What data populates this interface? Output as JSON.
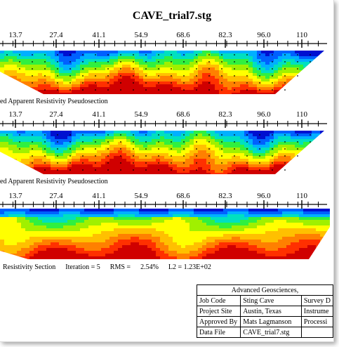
{
  "window": {
    "title": "CAVE_trial7.stg"
  },
  "tick_labels": [
    "13.7",
    "27.4",
    "41.1",
    "54.9",
    "68.6",
    "82.3",
    "96.0",
    "110"
  ],
  "sections": [
    {
      "caption": "ed Apparent Resistivity Pseudosection"
    },
    {
      "caption": "ed Apparent Resistivity Pseudosection"
    },
    {
      "caption": "Resistivity Section",
      "iteration_label": "Iteration = 5",
      "rms_label": "RMS =",
      "rms_value": "2.54%",
      "l2_label": "L2 = 1.23E+02"
    }
  ],
  "info_box": {
    "company": "Advanced Geosciences,",
    "rows": [
      {
        "label": "Job Code",
        "value": "Sting Cave",
        "extra": "Survey D"
      },
      {
        "label": "Project Site",
        "value": "Austin, Texas",
        "extra": "Instrume"
      },
      {
        "label": "Approved By",
        "value": "Mats Lagmanson",
        "extra": "Processi"
      },
      {
        "label": "Data File",
        "value": "CAVE_trial7.stg",
        "extra": ""
      }
    ]
  },
  "colors": {
    "scale": [
      "#0010d0",
      "#0060ff",
      "#00b0ff",
      "#00e0c0",
      "#30f040",
      "#a0f000",
      "#ffff00",
      "#ffc000",
      "#ff8000",
      "#ff3000",
      "#d00000"
    ]
  }
}
